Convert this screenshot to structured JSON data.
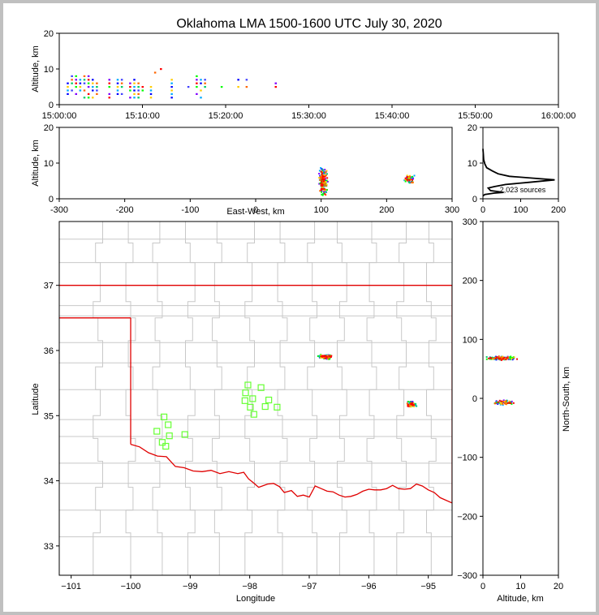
{
  "colors": {
    "background": "#ffffff",
    "frame": "#c0c0c0",
    "state_line": "#e00000",
    "county_line": "#c8c8c8",
    "station_marker": "#66ff33",
    "source_palette": [
      "#0000ff",
      "#4040ff",
      "#8000ff",
      "#00aaff",
      "#00cc66",
      "#00ff00",
      "#ffcc00",
      "#ff6600",
      "#ff0000",
      "#000000"
    ]
  },
  "chart_data": [
    {
      "id": "time-height",
      "type": "scatter",
      "title": "Oklahoma LMA 1500-1600 UTC July 30, 2020",
      "xlabel": "",
      "ylabel": "Altitude, km",
      "xlim_minutes": [
        0,
        60
      ],
      "ylim": [
        0,
        20
      ],
      "xticks": [
        {
          "v": 0,
          "label": "15:00:00"
        },
        {
          "v": 10,
          "label": "15:10:00"
        },
        {
          "v": 20,
          "label": "15:20:00"
        },
        {
          "v": 30,
          "label": "15:30:00"
        },
        {
          "v": 40,
          "label": "15:40:00"
        },
        {
          "v": 50,
          "label": "15:50:00"
        },
        {
          "v": 60,
          "label": "16:00:00"
        }
      ],
      "yticks": [
        0,
        10,
        20
      ],
      "source_columns": [
        {
          "t": 1.0,
          "alt": [
            3,
            4,
            5,
            6
          ]
        },
        {
          "t": 1.5,
          "alt": [
            4,
            6,
            7,
            8
          ]
        },
        {
          "t": 2.0,
          "alt": [
            3,
            5,
            6,
            7,
            8
          ]
        },
        {
          "t": 2.5,
          "alt": [
            4,
            5,
            6,
            7
          ]
        },
        {
          "t": 3.0,
          "alt": [
            2,
            4,
            6,
            7,
            8
          ]
        },
        {
          "t": 3.5,
          "alt": [
            2,
            3,
            5,
            6,
            7,
            8
          ]
        },
        {
          "t": 4.0,
          "alt": [
            2,
            4,
            5,
            6,
            7
          ]
        },
        {
          "t": 4.5,
          "alt": [
            3,
            4,
            5,
            6
          ]
        },
        {
          "t": 6.0,
          "alt": [
            2,
            3,
            5,
            6,
            7
          ]
        },
        {
          "t": 7.0,
          "alt": [
            3,
            4,
            5,
            6,
            7
          ]
        },
        {
          "t": 7.5,
          "alt": [
            3,
            5,
            6,
            7
          ]
        },
        {
          "t": 8.5,
          "alt": [
            2,
            4,
            5,
            6
          ]
        },
        {
          "t": 9.0,
          "alt": [
            2,
            3,
            4,
            5,
            6,
            7
          ]
        },
        {
          "t": 9.5,
          "alt": [
            2,
            3,
            4,
            5,
            6
          ]
        },
        {
          "t": 10.0,
          "alt": [
            4,
            5
          ]
        },
        {
          "t": 11.0,
          "alt": [
            2,
            3,
            4,
            5
          ]
        },
        {
          "t": 11.5,
          "alt": [
            9
          ]
        },
        {
          "t": 12.2,
          "alt": [
            10
          ]
        },
        {
          "t": 13.5,
          "alt": [
            2,
            3,
            4,
            5,
            6,
            7
          ]
        },
        {
          "t": 15.5,
          "alt": [
            5
          ]
        },
        {
          "t": 16.5,
          "alt": [
            3,
            5,
            6,
            7,
            8
          ]
        },
        {
          "t": 17.0,
          "alt": [
            2,
            4,
            6,
            7
          ]
        },
        {
          "t": 17.5,
          "alt": [
            5,
            6,
            7
          ]
        },
        {
          "t": 19.5,
          "alt": [
            5
          ]
        },
        {
          "t": 21.5,
          "alt": [
            5,
            7
          ]
        },
        {
          "t": 22.5,
          "alt": [
            5,
            7
          ]
        },
        {
          "t": 26.0,
          "alt": [
            5,
            6
          ]
        }
      ]
    },
    {
      "id": "ew-height",
      "type": "scatter",
      "xlabel": "East-West, km",
      "ylabel": "Altitude, km",
      "xlim": [
        -300,
        300
      ],
      "ylim": [
        0,
        20
      ],
      "xticks": [
        -300,
        -200,
        -100,
        0,
        100,
        200,
        300
      ],
      "yticks": [
        0,
        10,
        20
      ],
      "clusters": [
        {
          "x_center": 103,
          "x_spread": 8,
          "alt_min": 1,
          "alt_max": 11,
          "alt_center": 5,
          "count": 220
        },
        {
          "x_center": 235,
          "x_spread": 9,
          "alt_min": 4.5,
          "alt_max": 9,
          "alt_center": 5.5,
          "count": 60
        }
      ]
    },
    {
      "id": "altitude-histogram",
      "type": "line",
      "annotation": "2,023 sources",
      "xlim": [
        0,
        200
      ],
      "ylim": [
        0,
        20
      ],
      "xticks": [
        0,
        100,
        200
      ],
      "yticks": [
        0,
        10,
        20
      ],
      "profile": [
        {
          "count": 0,
          "alt": 0.8
        },
        {
          "count": 5,
          "alt": 1.2
        },
        {
          "count": 30,
          "alt": 1.6
        },
        {
          "count": 55,
          "alt": 1.8
        },
        {
          "count": 20,
          "alt": 2.3
        },
        {
          "count": 14,
          "alt": 3.0
        },
        {
          "count": 30,
          "alt": 3.4
        },
        {
          "count": 60,
          "alt": 4.0
        },
        {
          "count": 120,
          "alt": 4.6
        },
        {
          "count": 190,
          "alt": 5.3
        },
        {
          "count": 130,
          "alt": 5.8
        },
        {
          "count": 70,
          "alt": 6.3
        },
        {
          "count": 40,
          "alt": 7.0
        },
        {
          "count": 25,
          "alt": 7.8
        },
        {
          "count": 10,
          "alt": 8.7
        },
        {
          "count": 5,
          "alt": 9.8
        },
        {
          "count": 2,
          "alt": 11
        },
        {
          "count": 1,
          "alt": 12.5
        },
        {
          "count": 0,
          "alt": 14
        }
      ]
    },
    {
      "id": "plan-view",
      "type": "scatter",
      "xlabel": "Longitude",
      "ylabel": "Latitude",
      "xlim": [
        -101.2,
        -94.6
      ],
      "ylim": [
        32.55,
        37.98
      ],
      "xticks": [
        -101,
        -100,
        -99,
        -98,
        -97,
        -96,
        -95
      ],
      "yticks": [
        33,
        34,
        35,
        36,
        37
      ],
      "stations": [
        [
          -98.03,
          35.47
        ],
        [
          -97.81,
          35.43
        ],
        [
          -98.07,
          35.35
        ],
        [
          -97.95,
          35.26
        ],
        [
          -98.08,
          35.23
        ],
        [
          -97.68,
          35.24
        ],
        [
          -97.99,
          35.13
        ],
        [
          -97.74,
          35.14
        ],
        [
          -97.54,
          35.13
        ],
        [
          -97.93,
          35.02
        ],
        [
          -99.44,
          34.98
        ],
        [
          -99.37,
          34.86
        ],
        [
          -99.56,
          34.76
        ],
        [
          -99.09,
          34.71
        ],
        [
          -99.35,
          34.69
        ],
        [
          -99.47,
          34.59
        ],
        [
          -99.41,
          34.53
        ]
      ],
      "source_clusters": [
        {
          "lon": -96.73,
          "lat": 35.9,
          "lon_spread": 0.15,
          "lat_spread": 0.04,
          "count": 130
        },
        {
          "lon": -95.29,
          "lat": 35.17,
          "lon_spread": 0.11,
          "lat_spread": 0.06,
          "count": 80
        }
      ],
      "state_border": {
        "north_lat": 37.0,
        "panhandle_lat": 36.5,
        "panhandle_east_lon": -100.0,
        "red_river": [
          [
            -100.0,
            34.56
          ],
          [
            -99.85,
            34.52
          ],
          [
            -99.7,
            34.43
          ],
          [
            -99.55,
            34.38
          ],
          [
            -99.4,
            34.37
          ],
          [
            -99.25,
            34.22
          ],
          [
            -99.1,
            34.2
          ],
          [
            -98.95,
            34.15
          ],
          [
            -98.8,
            34.14
          ],
          [
            -98.65,
            34.16
          ],
          [
            -98.5,
            34.11
          ],
          [
            -98.35,
            34.14
          ],
          [
            -98.2,
            34.11
          ],
          [
            -98.1,
            34.13
          ],
          [
            -98.02,
            34.03
          ],
          [
            -97.95,
            33.98
          ],
          [
            -97.85,
            33.9
          ],
          [
            -97.7,
            33.95
          ],
          [
            -97.6,
            33.96
          ],
          [
            -97.5,
            33.91
          ],
          [
            -97.42,
            33.82
          ],
          [
            -97.3,
            33.85
          ],
          [
            -97.2,
            33.76
          ],
          [
            -97.1,
            33.78
          ],
          [
            -97.0,
            33.75
          ],
          [
            -96.9,
            33.92
          ],
          [
            -96.8,
            33.88
          ],
          [
            -96.7,
            33.84
          ],
          [
            -96.6,
            33.83
          ],
          [
            -96.5,
            33.78
          ],
          [
            -96.4,
            33.75
          ],
          [
            -96.3,
            33.76
          ],
          [
            -96.2,
            33.79
          ],
          [
            -96.1,
            33.84
          ],
          [
            -96.0,
            33.87
          ],
          [
            -95.9,
            33.86
          ],
          [
            -95.8,
            33.86
          ],
          [
            -95.7,
            33.88
          ],
          [
            -95.6,
            33.93
          ],
          [
            -95.5,
            33.88
          ],
          [
            -95.4,
            33.87
          ],
          [
            -95.3,
            33.88
          ],
          [
            -95.2,
            33.95
          ],
          [
            -95.1,
            33.92
          ],
          [
            -95.0,
            33.86
          ],
          [
            -94.9,
            33.82
          ],
          [
            -94.8,
            33.74
          ],
          [
            -94.6,
            33.66
          ]
        ]
      }
    },
    {
      "id": "height-ns",
      "type": "scatter",
      "xlabel": "Altitude, km",
      "ylabel": "North-South, km",
      "xlim": [
        0,
        20
      ],
      "ylim": [
        -300,
        300
      ],
      "xticks": [
        0,
        10,
        20
      ],
      "yticks": [
        -300,
        -200,
        -100,
        0,
        100,
        200,
        300
      ],
      "clusters": [
        {
          "ns_center": 68,
          "ns_spread": 4,
          "alt_min": 1,
          "alt_max": 12,
          "alt_center": 5,
          "count": 140
        },
        {
          "ns_center": -7,
          "ns_spread": 5,
          "alt_min": 2.5,
          "alt_max": 9.5,
          "alt_center": 5.5,
          "count": 70
        }
      ]
    }
  ]
}
